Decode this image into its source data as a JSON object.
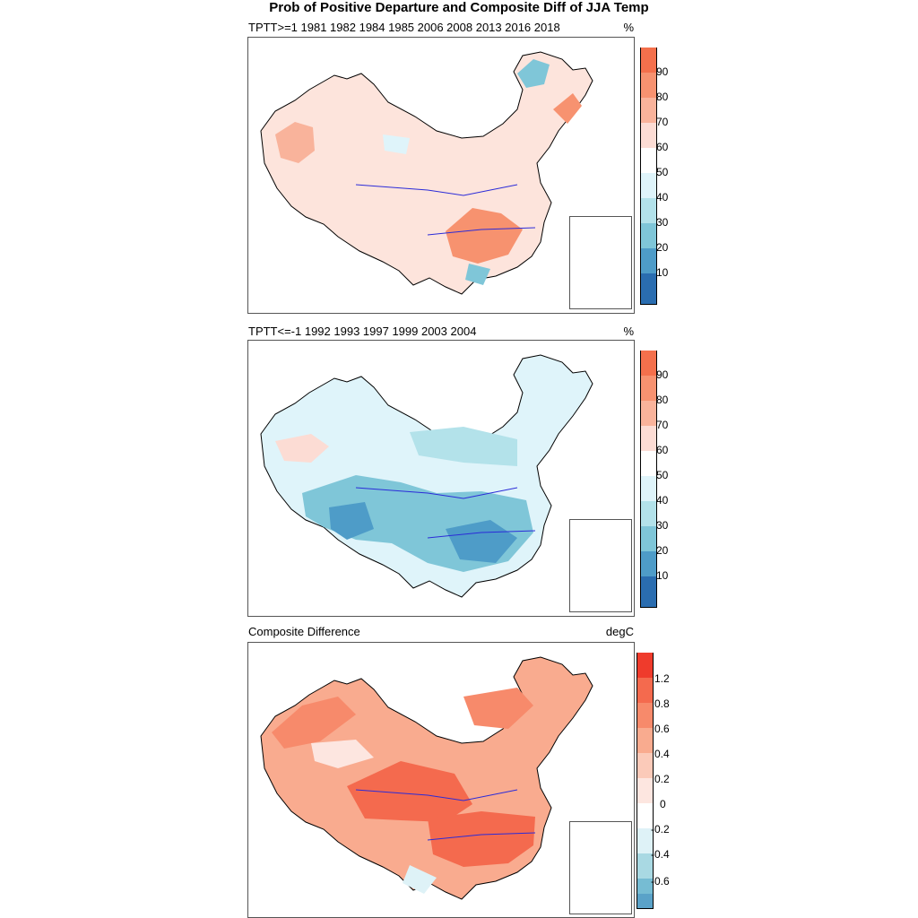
{
  "figure": {
    "title": "Prob of Positive Departure and Composite Diff of JJA Temp"
  },
  "panels": [
    {
      "id": "positive",
      "left_label": "TPTT>=1 1981 1982 1984 1985 2006 2008 2013 2016 2018",
      "right_label": "%",
      "colorbar": {
        "labels": [
          "90",
          "80",
          "70",
          "60",
          "50",
          "40",
          "30",
          "20",
          "10"
        ],
        "colors": [
          "#f4704c",
          "#f79270",
          "#f9b39b",
          "#fcdcd4",
          "#ffffff",
          "#dff4fa",
          "#b3e2ea",
          "#7fc6d8",
          "#4e9cc8",
          "#2a6db0"
        ]
      }
    },
    {
      "id": "negative",
      "left_label": "TPTT<=-1 1992 1993 1997 1999 2003 2004",
      "right_label": "%",
      "colorbar": {
        "labels": [
          "90",
          "80",
          "70",
          "60",
          "50",
          "40",
          "30",
          "20",
          "10"
        ],
        "colors": [
          "#f4704c",
          "#f79270",
          "#f9b39b",
          "#fcdcd4",
          "#ffffff",
          "#dff4fa",
          "#b3e2ea",
          "#7fc6d8",
          "#4e9cc8",
          "#2a6db0"
        ]
      }
    },
    {
      "id": "difference",
      "left_label": "Composite Difference",
      "right_label": "degC",
      "colorbar": {
        "labels": [
          "1.2",
          "0.8",
          "0.6",
          "0.4",
          "0.2",
          "0",
          "-0.2",
          "-0.4",
          "-0.6"
        ],
        "colors": [
          "#ef3b2c",
          "#f46a4e",
          "#f78a6b",
          "#f9ab8f",
          "#fbcab9",
          "#fde6e0",
          "#ffffff",
          "#def2f7",
          "#a9d9e3",
          "#76bcd3",
          "#5aa2c8"
        ]
      }
    }
  ]
}
